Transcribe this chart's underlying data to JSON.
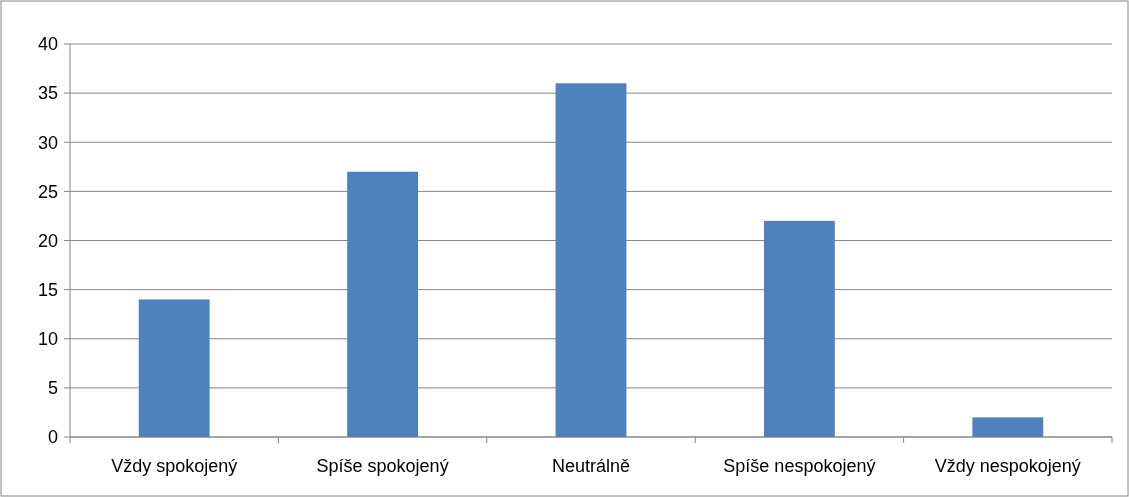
{
  "chart_data": {
    "type": "bar",
    "categories": [
      "Vždy spokojený",
      "Spíše spokojený",
      "Neutrálně",
      "Spíše nespokojený",
      "Vždy nespokojený"
    ],
    "values": [
      14,
      27,
      36,
      22,
      2
    ],
    "color": "#4f81bd",
    "ylim": [
      0,
      40
    ],
    "yticks": [
      0,
      5,
      10,
      15,
      20,
      25,
      30,
      35,
      40
    ],
    "grid": "y"
  }
}
